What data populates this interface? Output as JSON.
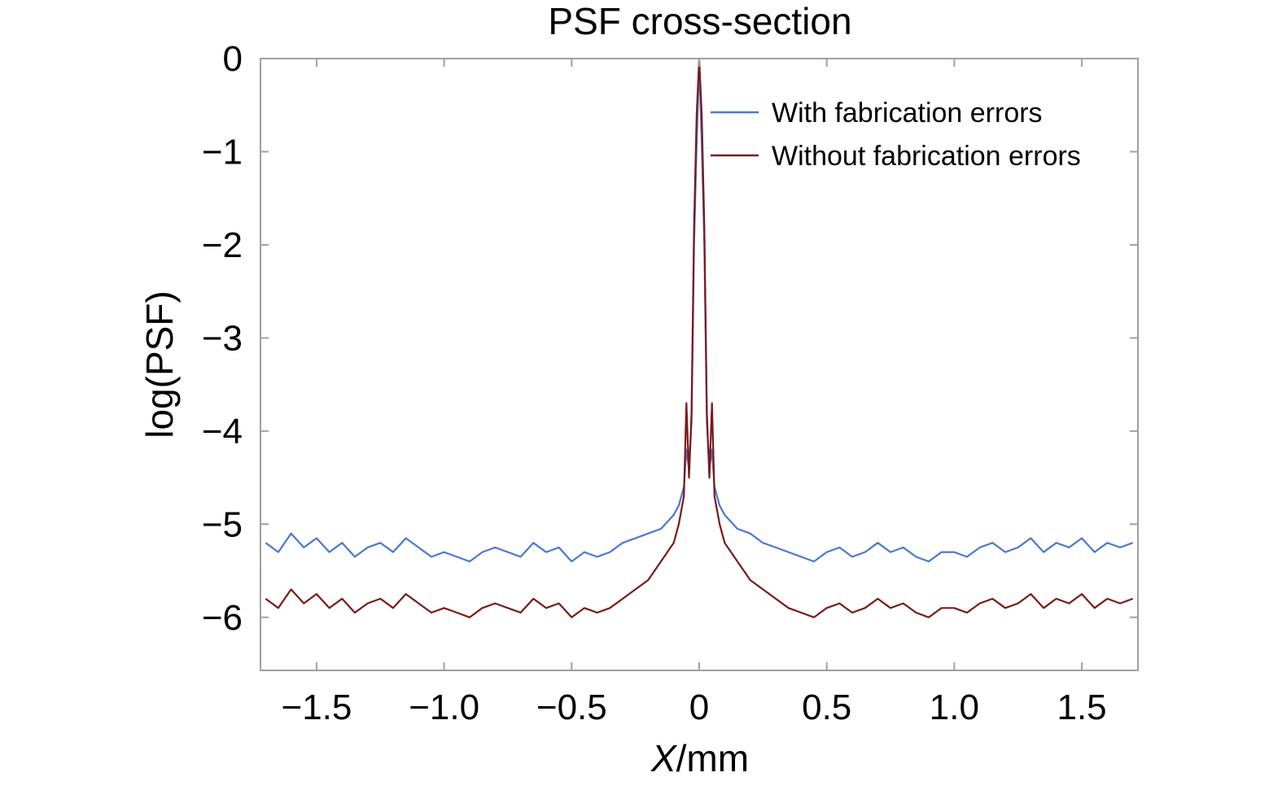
{
  "chart_data": {
    "type": "line",
    "title": "PSF cross-section",
    "xlabel_var": "X",
    "xlabel_unit": "/mm",
    "ylabel": "log(PSF)",
    "xlim": [
      -1.72,
      1.72
    ],
    "ylim": [
      -6.57,
      0
    ],
    "x_ticks": [
      -1.5,
      -1.0,
      -0.5,
      0,
      0.5,
      1.0,
      1.5
    ],
    "x_tick_labels": [
      "−1.5",
      "−1.0",
      "−0.5",
      "0",
      "0.5",
      "1.0",
      "1.5"
    ],
    "y_ticks": [
      0,
      -1,
      -2,
      -3,
      -4,
      -5,
      -6
    ],
    "y_tick_labels": [
      "0",
      "−1",
      "−2",
      "−3",
      "−4",
      "−5",
      "−6"
    ],
    "grid": false,
    "legend_position": "top-right",
    "series": [
      {
        "name": "With fabrication errors",
        "color": "#4a78d0",
        "x": [
          -1.7,
          -1.65,
          -1.6,
          -1.55,
          -1.5,
          -1.45,
          -1.4,
          -1.35,
          -1.3,
          -1.25,
          -1.2,
          -1.15,
          -1.1,
          -1.05,
          -1.0,
          -0.95,
          -0.9,
          -0.85,
          -0.8,
          -0.75,
          -0.7,
          -0.65,
          -0.6,
          -0.55,
          -0.5,
          -0.45,
          -0.4,
          -0.35,
          -0.3,
          -0.25,
          -0.2,
          -0.15,
          -0.1,
          -0.08,
          -0.06,
          -0.05,
          -0.04,
          -0.03,
          -0.02,
          -0.01,
          0,
          0.01,
          0.02,
          0.03,
          0.04,
          0.05,
          0.06,
          0.08,
          0.1,
          0.15,
          0.2,
          0.25,
          0.3,
          0.35,
          0.4,
          0.45,
          0.5,
          0.55,
          0.6,
          0.65,
          0.7,
          0.75,
          0.8,
          0.85,
          0.9,
          0.95,
          1.0,
          1.05,
          1.1,
          1.15,
          1.2,
          1.25,
          1.3,
          1.35,
          1.4,
          1.45,
          1.5,
          1.55,
          1.6,
          1.65,
          1.7
        ],
        "values": [
          -5.2,
          -5.3,
          -5.1,
          -5.25,
          -5.15,
          -5.3,
          -5.2,
          -5.35,
          -5.25,
          -5.2,
          -5.3,
          -5.15,
          -5.25,
          -5.35,
          -5.3,
          -5.35,
          -5.4,
          -5.3,
          -5.25,
          -5.3,
          -5.35,
          -5.2,
          -5.3,
          -5.25,
          -5.4,
          -5.3,
          -5.35,
          -5.3,
          -5.2,
          -5.15,
          -5.1,
          -5.05,
          -4.9,
          -4.8,
          -4.6,
          -4.2,
          -4.4,
          -3.9,
          -2.0,
          -0.9,
          -0.05,
          -0.9,
          -2.0,
          -3.9,
          -4.4,
          -4.2,
          -4.6,
          -4.8,
          -4.9,
          -5.05,
          -5.1,
          -5.2,
          -5.25,
          -5.3,
          -5.35,
          -5.4,
          -5.3,
          -5.25,
          -5.35,
          -5.3,
          -5.2,
          -5.3,
          -5.25,
          -5.35,
          -5.4,
          -5.3,
          -5.3,
          -5.35,
          -5.25,
          -5.2,
          -5.3,
          -5.25,
          -5.15,
          -5.3,
          -5.2,
          -5.25,
          -5.15,
          -5.3,
          -5.2,
          -5.25,
          -5.2
        ]
      },
      {
        "name": "Without fabrication errors",
        "color": "#7a1a1a",
        "x": [
          -1.7,
          -1.65,
          -1.6,
          -1.55,
          -1.5,
          -1.45,
          -1.4,
          -1.35,
          -1.3,
          -1.25,
          -1.2,
          -1.15,
          -1.1,
          -1.05,
          -1.0,
          -0.95,
          -0.9,
          -0.85,
          -0.8,
          -0.75,
          -0.7,
          -0.65,
          -0.6,
          -0.55,
          -0.5,
          -0.45,
          -0.4,
          -0.35,
          -0.3,
          -0.25,
          -0.2,
          -0.15,
          -0.1,
          -0.08,
          -0.06,
          -0.05,
          -0.04,
          -0.03,
          -0.02,
          -0.01,
          0,
          0.01,
          0.02,
          0.03,
          0.04,
          0.05,
          0.06,
          0.08,
          0.1,
          0.15,
          0.2,
          0.25,
          0.3,
          0.35,
          0.4,
          0.45,
          0.5,
          0.55,
          0.6,
          0.65,
          0.7,
          0.75,
          0.8,
          0.85,
          0.9,
          0.95,
          1.0,
          1.05,
          1.1,
          1.15,
          1.2,
          1.25,
          1.3,
          1.35,
          1.4,
          1.45,
          1.5,
          1.55,
          1.6,
          1.65,
          1.7
        ],
        "values": [
          -5.8,
          -5.9,
          -5.7,
          -5.85,
          -5.75,
          -5.9,
          -5.8,
          -5.95,
          -5.85,
          -5.8,
          -5.9,
          -5.75,
          -5.85,
          -5.95,
          -5.9,
          -5.95,
          -6.0,
          -5.9,
          -5.85,
          -5.9,
          -5.95,
          -5.8,
          -5.9,
          -5.85,
          -6.0,
          -5.9,
          -5.95,
          -5.9,
          -5.8,
          -5.7,
          -5.6,
          -5.4,
          -5.2,
          -5.0,
          -4.7,
          -3.7,
          -4.5,
          -3.8,
          -1.8,
          -0.6,
          0.0,
          -0.6,
          -1.8,
          -3.8,
          -4.5,
          -3.7,
          -4.7,
          -5.0,
          -5.2,
          -5.4,
          -5.6,
          -5.7,
          -5.8,
          -5.9,
          -5.95,
          -6.0,
          -5.9,
          -5.85,
          -5.95,
          -5.9,
          -5.8,
          -5.9,
          -5.85,
          -5.95,
          -6.0,
          -5.9,
          -5.9,
          -5.95,
          -5.85,
          -5.8,
          -5.9,
          -5.85,
          -5.75,
          -5.9,
          -5.8,
          -5.85,
          -5.75,
          -5.9,
          -5.8,
          -5.85,
          -5.8
        ]
      }
    ]
  }
}
